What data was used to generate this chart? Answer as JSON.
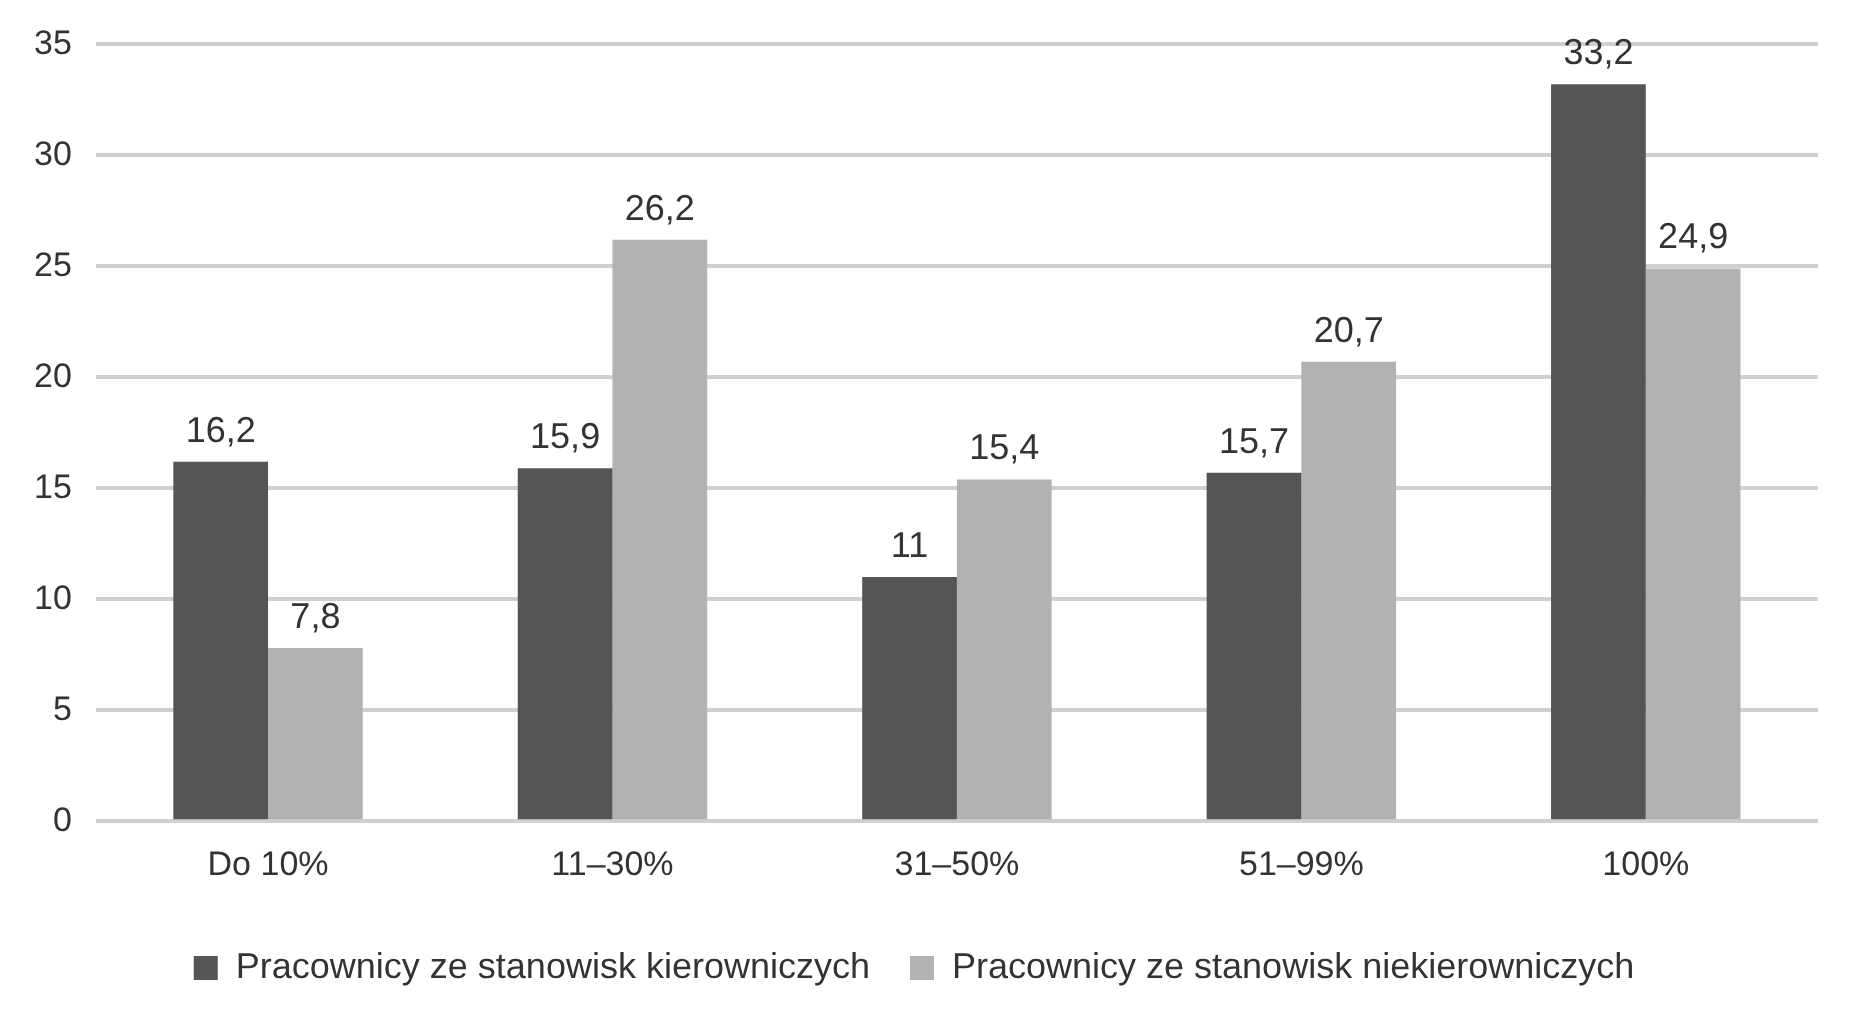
{
  "chart_data": {
    "type": "bar",
    "categories": [
      "Do 10%",
      "11–30%",
      "31–50%",
      "51–99%",
      "100%"
    ],
    "series": [
      {
        "name": "Pracownicy ze stanowisk kierowniczych",
        "color": "#555555",
        "values": [
          16.2,
          15.9,
          11,
          15.7,
          33.2
        ],
        "value_labels": [
          "16,2",
          "15,9",
          "11",
          "15,7",
          "33,2"
        ]
      },
      {
        "name": "Pracownicy ze stanowisk niekierowniczych",
        "color": "#b2b2b2",
        "values": [
          7.8,
          26.2,
          15.4,
          20.7,
          24.9
        ],
        "value_labels": [
          "7,8",
          "26,2",
          "15,4",
          "20,7",
          "24,9"
        ]
      }
    ],
    "ylim": [
      0,
      35
    ],
    "yticks": [
      0,
      5,
      10,
      15,
      20,
      25,
      30,
      35
    ],
    "grid": "y",
    "legend": "bottom"
  }
}
